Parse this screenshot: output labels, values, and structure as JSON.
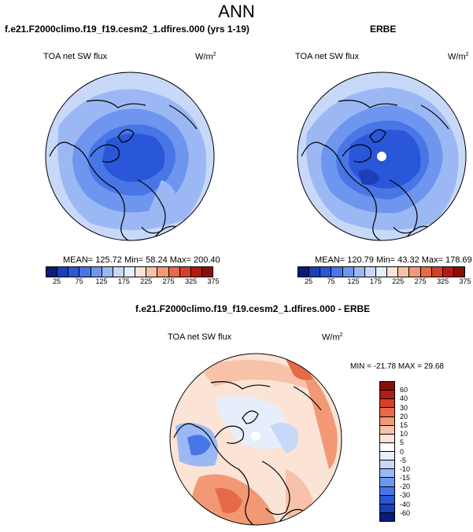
{
  "page_title": "ANN",
  "colors": {
    "abs_scale": [
      "#0a1a7a",
      "#1c3fb8",
      "#2a56d8",
      "#4876e6",
      "#6e96ee",
      "#9cb8f4",
      "#c8d8f8",
      "#e6eefb",
      "#fbe3d6",
      "#f7c2a8",
      "#f29874",
      "#e76a48",
      "#d4412a",
      "#b21c12",
      "#8a0e0a"
    ],
    "diff_scale": [
      "#0a1a7a",
      "#1c3fb8",
      "#2a56d8",
      "#4876e6",
      "#6e96ee",
      "#9cb8f4",
      "#c8d8f8",
      "#e6eefb",
      "#ffffff",
      "#fbe3d6",
      "#f7c2a8",
      "#f29874",
      "#e76a48",
      "#d4412a",
      "#b21c12",
      "#8a0e0a"
    ],
    "land_outline": "#000000",
    "missing": "#ffffff"
  },
  "panels": {
    "left": {
      "header": "f.e21.F2000climo.f19_f19.cesm2_1.dfires.000 (yrs 1-19)",
      "variable": "TOA net SW flux",
      "units": "W/m",
      "units_sup": "2",
      "stats": "MEAN= 125.72  Min=  58.24  Max= 200.40"
    },
    "right": {
      "header": "ERBE",
      "variable": "TOA net SW flux",
      "units": "W/m",
      "units_sup": "2",
      "stats": "MEAN= 120.79  Min=  43.32  Max= 178.69"
    },
    "diff": {
      "header": "f.e21.F2000climo.f19_f19.cesm2_1.dfires.000 - ERBE",
      "variable": "TOA net SW flux",
      "units": "W/m",
      "units_sup": "2",
      "stats": "MIN = -21.78 MAX =  29.68"
    }
  },
  "chart_data": [
    {
      "type": "heatmap",
      "title": "f.e21.F2000climo.f19_f19.cesm2_1.dfires.000 (yrs 1-19)",
      "subtitle": "TOA net SW flux",
      "units": "W/m^2",
      "projection": "north polar stereographic",
      "mean": 125.72,
      "min": 58.24,
      "max": 200.4,
      "colorbar_ticks": [
        25,
        75,
        125,
        175,
        225,
        275,
        325,
        375
      ]
    },
    {
      "type": "heatmap",
      "title": "ERBE",
      "subtitle": "TOA net SW flux",
      "units": "W/m^2",
      "projection": "north polar stereographic",
      "mean": 120.79,
      "min": 43.32,
      "max": 178.69,
      "colorbar_ticks": [
        25,
        75,
        125,
        175,
        225,
        275,
        325,
        375
      ]
    },
    {
      "type": "heatmap",
      "title": "f.e21.F2000climo.f19_f19.cesm2_1.dfires.000 - ERBE",
      "subtitle": "TOA net SW flux",
      "units": "W/m^2",
      "projection": "north polar stereographic",
      "min": -21.78,
      "max": 29.68,
      "colorbar_ticks": [
        60,
        40,
        30,
        20,
        15,
        10,
        5,
        0,
        -5,
        -10,
        -15,
        -20,
        -30,
        -40,
        -60
      ]
    }
  ]
}
